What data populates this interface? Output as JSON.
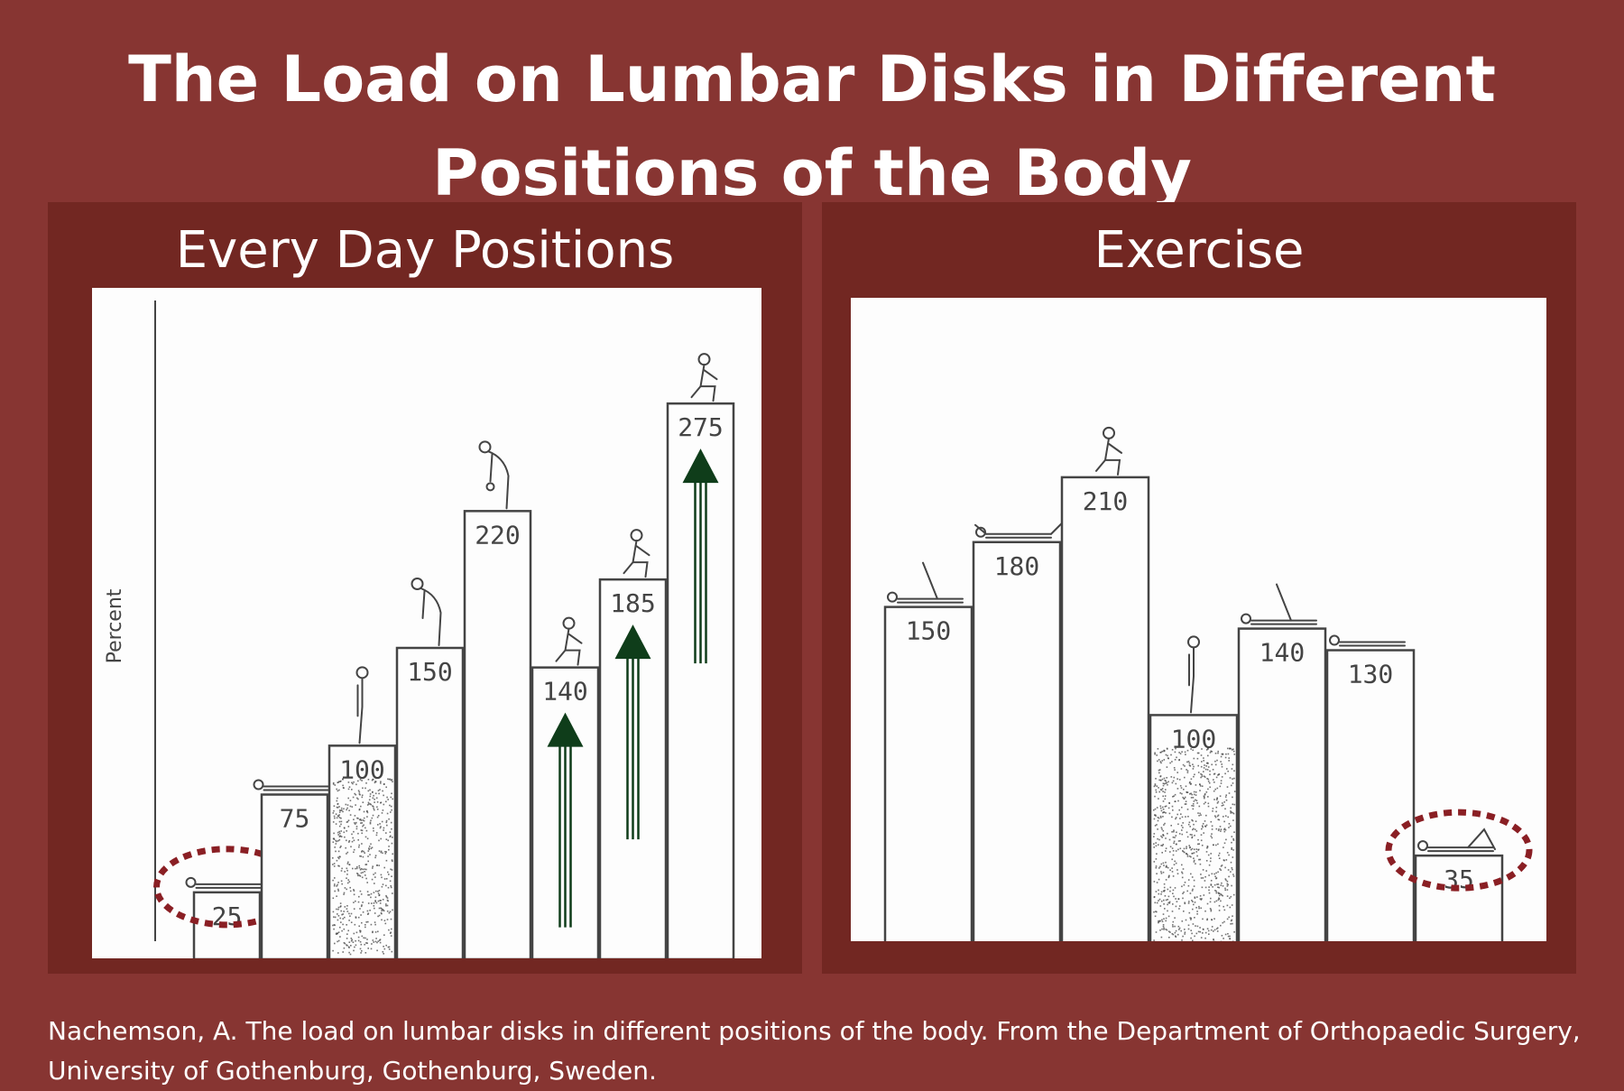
{
  "title": "The Load on Lumbar Disks in Different Positions of the Body",
  "caption": "Nachemson, A. The load on lumbar disks in different positions of the body. From the Department of Orthopaedic Surgery, University of Gothenburg, Gothenburg, Sweden.",
  "colors": {
    "background": "#873532",
    "panel": "#722722",
    "arrow": "#0f3d1a",
    "highlight": "#8a1f24",
    "ink": "#444444"
  },
  "chart_data": [
    {
      "type": "bar",
      "title": "Every Day Positions",
      "ylabel": "Percent",
      "values": [
        25,
        75,
        100,
        150,
        220,
        140,
        185,
        275
      ],
      "value_labels": [
        "25",
        "75",
        "100",
        "150",
        "220",
        "140",
        "185",
        "275"
      ],
      "reference_value": 100,
      "highlighted_value": 25,
      "increase_arrows_on_values": [
        140,
        185,
        275
      ],
      "position_icons": [
        "lying-supine-icon",
        "lying-side-icon",
        "standing-icon",
        "leaning-forward-icon",
        "lifting-icon",
        "sitting-icon",
        "sitting-leaning-icon",
        "sitting-lifting-icon"
      ],
      "ylim": [
        0,
        300
      ]
    },
    {
      "type": "bar",
      "title": "Exercise",
      "values": [
        150,
        180,
        210,
        100,
        140,
        130,
        35
      ],
      "value_labels": [
        "150",
        "180",
        "210",
        "100",
        "140",
        "130",
        "35"
      ],
      "reference_value": 100,
      "highlighted_value": 35,
      "position_icons": [
        "leg-raise-icon",
        "back-extension-icon",
        "sit-up-icon",
        "standing-icon",
        "assisted-leg-raise-icon",
        "traction-icon",
        "knees-bent-lying-icon"
      ],
      "ylim": [
        0,
        240
      ]
    }
  ]
}
